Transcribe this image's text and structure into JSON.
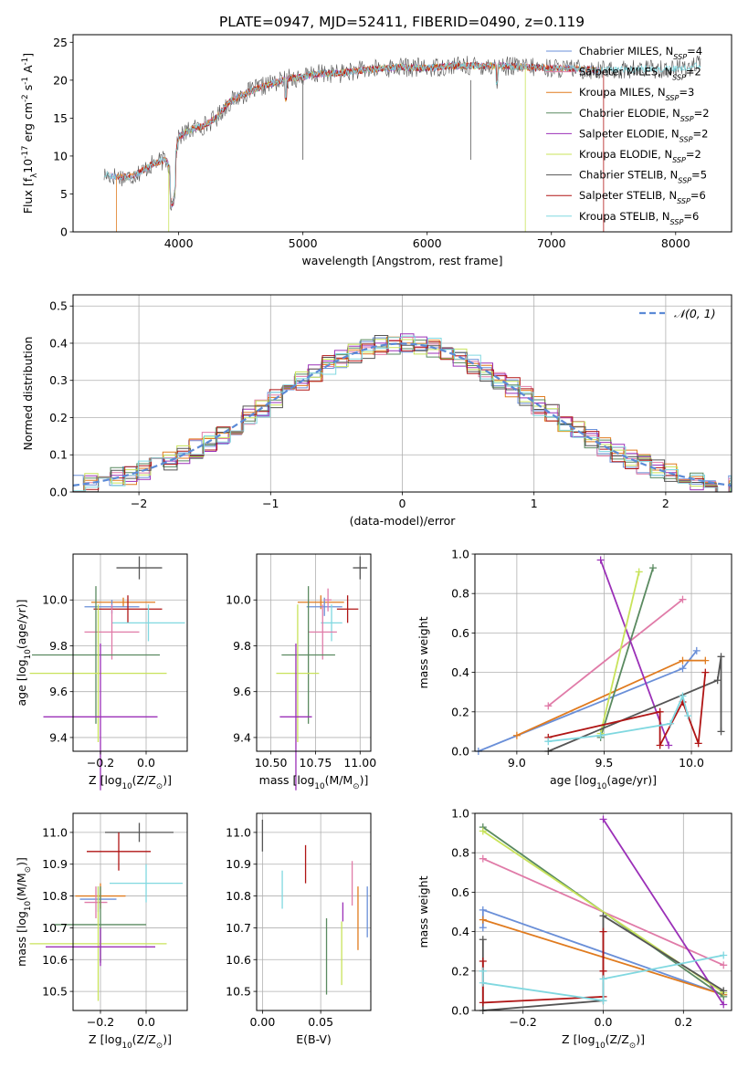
{
  "title": "PLATE=0947, MJD=52411, FIBERID=0490, z=0.119",
  "colors": {
    "Chabrier MILES": "#6a8fd8",
    "Salpeter MILES": "#e07ba8",
    "Kroupa MILES": "#e07b1f",
    "Chabrier ELODIE": "#5a8a60",
    "Salpeter ELODIE": "#9b30b8",
    "Kroupa ELODIE": "#c8e35a",
    "Chabrier STELIB": "#555555",
    "Salpeter STELIB": "#b01515",
    "Kroupa STELIB": "#80d8e0",
    "gauss": "#5b8ad6"
  },
  "chart_data": [
    {
      "id": "spectrum",
      "type": "line",
      "xlabel": "wavelength [Angstrom, rest frame]",
      "ylabel": "Flux [f$_\\lambda$10$^{-17}$ erg cm$^{-2}$ s$^{-1}$ A$^{-1}$]",
      "xlim": [
        3150,
        8450
      ],
      "ylim": [
        0,
        26
      ],
      "xticks": [
        4000,
        5000,
        6000,
        7000,
        8000
      ],
      "yticks": [
        0,
        5,
        10,
        15,
        20,
        25
      ],
      "grid": false,
      "legend_position": "top-right",
      "legend": [
        {
          "name": "Chabrier MILES",
          "nssp": "4"
        },
        {
          "name": "Salpeter MILES",
          "nssp": "2"
        },
        {
          "name": "Kroupa MILES",
          "nssp": "3"
        },
        {
          "name": "Chabrier ELODIE",
          "nssp": "2"
        },
        {
          "name": "Salpeter ELODIE",
          "nssp": "2"
        },
        {
          "name": "Kroupa ELODIE",
          "nssp": "2"
        },
        {
          "name": "Chabrier STELIB",
          "nssp": "5"
        },
        {
          "name": "Salpeter STELIB",
          "nssp": "6"
        },
        {
          "name": "Kroupa STELIB",
          "nssp": "6"
        }
      ],
      "continuum": [
        [
          3400,
          7.5
        ],
        [
          3600,
          7.2
        ],
        [
          3700,
          8.0
        ],
        [
          3800,
          9.0
        ],
        [
          3900,
          9.5
        ],
        [
          3950,
          7.5
        ],
        [
          4000,
          12.5
        ],
        [
          4100,
          13.5
        ],
        [
          4200,
          14.0
        ],
        [
          4300,
          15.0
        ],
        [
          4400,
          17.0
        ],
        [
          4500,
          18.0
        ],
        [
          4600,
          18.7
        ],
        [
          4700,
          19.3
        ],
        [
          4800,
          19.8
        ],
        [
          4900,
          20.3
        ],
        [
          5000,
          20.4
        ],
        [
          5100,
          20.8
        ],
        [
          5200,
          20.9
        ],
        [
          5300,
          20.9
        ],
        [
          5400,
          21.2
        ],
        [
          5600,
          21.5
        ],
        [
          5800,
          21.7
        ],
        [
          6000,
          21.6
        ],
        [
          6200,
          21.9
        ],
        [
          6400,
          21.9
        ],
        [
          6600,
          21.9
        ],
        [
          6800,
          21.7
        ],
        [
          7000,
          21.6
        ],
        [
          7200,
          21.5
        ],
        [
          7400,
          21.3
        ],
        [
          7600,
          21.4
        ],
        [
          7800,
          21.5
        ],
        [
          8000,
          21.5
        ],
        [
          8200,
          22.0
        ]
      ]
    },
    {
      "id": "residuals",
      "type": "histogram",
      "xlabel": "(data-model)/error",
      "ylabel": "Normed distribution",
      "xlim": [
        -2.5,
        2.5
      ],
      "ylim": [
        0,
        0.53
      ],
      "xticks": [
        -2,
        -1,
        0,
        1,
        2
      ],
      "yticks": [
        0.0,
        0.1,
        0.2,
        0.3,
        0.4,
        0.5
      ],
      "grid": true,
      "legend_position": "top-right",
      "legend_label": "$\\mathcal{N}(0, 1)$"
    },
    {
      "id": "age-vs-Z",
      "type": "errorbar",
      "xlabel": "Z [log$_{10}$(Z/Z$_\\odot$)]",
      "ylabel": "age  [log$_{10}$(age/yr)]",
      "xlim": [
        -0.32,
        0.18
      ],
      "ylim": [
        9.34,
        10.2
      ],
      "xticks": [
        -0.2,
        0.0
      ],
      "yticks": [
        9.4,
        9.6,
        9.8,
        10.0
      ],
      "grid": true,
      "points": [
        {
          "series": "Chabrier STELIB",
          "x": -0.03,
          "y": 10.14,
          "xerr": 0.1,
          "yerr": 0.05
        },
        {
          "series": "Kroupa MILES",
          "x": -0.1,
          "y": 9.99,
          "xerr": 0.14,
          "yerr": 0.02
        },
        {
          "series": "Chabrier MILES",
          "x": -0.15,
          "y": 9.97,
          "xerr": 0.12,
          "yerr": 0.03
        },
        {
          "series": "Salpeter STELIB",
          "x": -0.08,
          "y": 9.96,
          "xerr": 0.15,
          "yerr": 0.06
        },
        {
          "series": "Kroupa STELIB",
          "x": 0.01,
          "y": 9.9,
          "xerr": 0.16,
          "yerr": 0.08
        },
        {
          "series": "Salpeter MILES",
          "x": -0.15,
          "y": 9.86,
          "xerr": 0.12,
          "yerr": 0.12
        },
        {
          "series": "Chabrier ELODIE",
          "x": -0.22,
          "y": 9.76,
          "xerr": 0.28,
          "yerr": 0.3
        },
        {
          "series": "Kroupa ELODIE",
          "x": -0.21,
          "y": 9.68,
          "xerr": 0.3,
          "yerr": 0.3
        },
        {
          "series": "Salpeter ELODIE",
          "x": -0.2,
          "y": 9.49,
          "xerr": 0.25,
          "yerr": 0.32
        }
      ]
    },
    {
      "id": "age-vs-mass",
      "type": "errorbar",
      "xlabel": "mass [log$_{10}$(M/M$_\\odot$)]",
      "ylabel": "",
      "xlim": [
        10.42,
        11.06
      ],
      "ylim": [
        9.34,
        10.2
      ],
      "xticks": [
        10.5,
        10.75,
        11.0
      ],
      "yticks": [
        9.4,
        9.6,
        9.8,
        10.0
      ],
      "grid": true,
      "points": [
        {
          "series": "Chabrier STELIB",
          "x": 11.0,
          "y": 10.14,
          "xerr": 0.04,
          "yerr": 0.05
        },
        {
          "series": "Kroupa MILES",
          "x": 10.78,
          "y": 9.99,
          "xerr": 0.13,
          "yerr": 0.03
        },
        {
          "series": "Chabrier MILES",
          "x": 10.8,
          "y": 9.97,
          "xerr": 0.1,
          "yerr": 0.04
        },
        {
          "series": "Salpeter MILES",
          "x": 10.82,
          "y": 10.0,
          "xerr": 0.02,
          "yerr": 0.05
        },
        {
          "series": "Salpeter STELIB",
          "x": 10.93,
          "y": 9.96,
          "xerr": 0.06,
          "yerr": 0.06
        },
        {
          "series": "Kroupa STELIB",
          "x": 10.84,
          "y": 9.9,
          "xerr": 0.06,
          "yerr": 0.08
        },
        {
          "series": "Salpeter MILES",
          "x": 10.79,
          "y": 9.86,
          "xerr": 0.08,
          "yerr": 0.12
        },
        {
          "series": "Chabrier ELODIE",
          "x": 10.71,
          "y": 9.76,
          "xerr": 0.15,
          "yerr": 0.3
        },
        {
          "series": "Kroupa ELODIE",
          "x": 10.65,
          "y": 9.68,
          "xerr": 0.12,
          "yerr": 0.3
        },
        {
          "series": "Salpeter ELODIE",
          "x": 10.64,
          "y": 9.49,
          "xerr": 0.09,
          "yerr": 0.32
        }
      ]
    },
    {
      "id": "weight-vs-age",
      "type": "line",
      "xlabel": "age  [log$_{10}$(age/yr)]",
      "ylabel": "mass weight",
      "xlim": [
        8.76,
        10.23
      ],
      "ylim": [
        0,
        1.0
      ],
      "xticks": [
        9.0,
        9.5,
        10.0
      ],
      "yticks": [
        0.0,
        0.2,
        0.4,
        0.6,
        0.8,
        1.0
      ],
      "grid": true,
      "series": [
        {
          "name": "Chabrier MILES",
          "points": [
            [
              8.78,
              0.0
            ],
            [
              9.95,
              0.42
            ],
            [
              10.03,
              0.51
            ]
          ]
        },
        {
          "name": "Salpeter MILES",
          "points": [
            [
              9.18,
              0.23
            ],
            [
              9.95,
              0.77
            ]
          ]
        },
        {
          "name": "Kroupa MILES",
          "points": [
            [
              9.0,
              0.08
            ],
            [
              9.95,
              0.46
            ],
            [
              10.08,
              0.46
            ]
          ]
        },
        {
          "name": "Chabrier ELODIE",
          "points": [
            [
              9.48,
              0.07
            ],
            [
              9.78,
              0.93
            ]
          ]
        },
        {
          "name": "Salpeter ELODIE",
          "points": [
            [
              9.48,
              0.97
            ],
            [
              9.87,
              0.03
            ]
          ]
        },
        {
          "name": "Kroupa ELODIE",
          "points": [
            [
              9.48,
              0.09
            ],
            [
              9.7,
              0.91
            ]
          ]
        },
        {
          "name": "Chabrier STELIB",
          "points": [
            [
              9.18,
              0.0
            ],
            [
              10.15,
              0.36
            ],
            [
              10.17,
              0.48
            ],
            [
              10.17,
              0.1
            ]
          ]
        },
        {
          "name": "Salpeter STELIB",
          "points": [
            [
              9.18,
              0.07
            ],
            [
              9.82,
              0.2
            ],
            [
              9.82,
              0.03
            ],
            [
              9.95,
              0.25
            ],
            [
              10.04,
              0.04
            ],
            [
              10.08,
              0.4
            ]
          ]
        },
        {
          "name": "Kroupa STELIB",
          "points": [
            [
              9.18,
              0.05
            ],
            [
              9.48,
              0.08
            ],
            [
              9.88,
              0.14
            ],
            [
              9.95,
              0.28
            ],
            [
              9.98,
              0.18
            ]
          ]
        }
      ]
    },
    {
      "id": "mass-vs-Z",
      "type": "errorbar",
      "xlabel": "Z [log$_{10}$(Z/Z$_\\odot$)]",
      "ylabel": "mass [log$_{10}$(M/M$_\\odot$)]",
      "xlim": [
        -0.32,
        0.18
      ],
      "ylim": [
        10.44,
        11.06
      ],
      "xticks": [
        -0.2,
        0.0
      ],
      "yticks": [
        10.5,
        10.6,
        10.7,
        10.8,
        10.9,
        11.0
      ],
      "grid": true,
      "points": [
        {
          "series": "Chabrier STELIB",
          "x": -0.03,
          "y": 11.0,
          "xerr": 0.15,
          "yerr": 0.03
        },
        {
          "series": "Salpeter STELIB",
          "x": -0.12,
          "y": 10.94,
          "xerr": 0.14,
          "yerr": 0.06
        },
        {
          "series": "Kroupa STELIB",
          "x": 0.0,
          "y": 10.84,
          "xerr": 0.16,
          "yerr": 0.06
        },
        {
          "series": "Kroupa MILES",
          "x": -0.2,
          "y": 10.8,
          "xerr": 0.11,
          "yerr": 0.04
        },
        {
          "series": "Chabrier MILES",
          "x": -0.21,
          "y": 10.79,
          "xerr": 0.08,
          "yerr": 0.04
        },
        {
          "series": "Salpeter MILES",
          "x": -0.22,
          "y": 10.78,
          "xerr": 0.05,
          "yerr": 0.05
        },
        {
          "series": "Chabrier ELODIE",
          "x": -0.2,
          "y": 10.71,
          "xerr": 0.2,
          "yerr": 0.12
        },
        {
          "series": "Kroupa ELODIE",
          "x": -0.21,
          "y": 10.65,
          "xerr": 0.3,
          "yerr": 0.18
        },
        {
          "series": "Salpeter ELODIE",
          "x": -0.2,
          "y": 10.64,
          "xerr": 0.24,
          "yerr": 0.06
        }
      ]
    },
    {
      "id": "mass-vs-ebv",
      "type": "errorbar",
      "xlabel": "E(B-V)",
      "ylabel": "",
      "xlim": [
        -0.005,
        0.093
      ],
      "ylim": [
        10.44,
        11.06
      ],
      "xticks": [
        0.0,
        0.05
      ],
      "yticks": [
        10.5,
        10.6,
        10.7,
        10.8,
        10.9,
        11.0
      ],
      "grid": true,
      "points": [
        {
          "series": "Chabrier STELIB",
          "x": 0.0,
          "y": 10.99,
          "xerr": 0.0,
          "yerr": 0.05
        },
        {
          "series": "Salpeter STELIB",
          "x": 0.037,
          "y": 10.9,
          "xerr": 0.0,
          "yerr": 0.06
        },
        {
          "series": "Kroupa STELIB",
          "x": 0.017,
          "y": 10.82,
          "xerr": 0.0,
          "yerr": 0.06
        },
        {
          "series": "Salpeter MILES",
          "x": 0.077,
          "y": 10.84,
          "xerr": 0.0,
          "yerr": 0.07
        },
        {
          "series": "Kroupa MILES",
          "x": 0.082,
          "y": 10.73,
          "xerr": 0.0,
          "yerr": 0.1
        },
        {
          "series": "Chabrier MILES",
          "x": 0.09,
          "y": 10.75,
          "xerr": 0.0,
          "yerr": 0.08
        },
        {
          "series": "Salpeter ELODIE",
          "x": 0.069,
          "y": 10.75,
          "xerr": 0.0,
          "yerr": 0.03
        },
        {
          "series": "Chabrier ELODIE",
          "x": 0.055,
          "y": 10.61,
          "xerr": 0.0,
          "yerr": 0.12
        },
        {
          "series": "Kroupa ELODIE",
          "x": 0.068,
          "y": 10.62,
          "xerr": 0.0,
          "yerr": 0.1
        }
      ]
    },
    {
      "id": "weight-vs-Z",
      "type": "line",
      "xlabel": "Z [log$_{10}$(Z/Z$_\\odot$)]",
      "ylabel": "mass weight",
      "xlim": [
        -0.32,
        0.32
      ],
      "ylim": [
        0,
        1.0
      ],
      "xticks": [
        -0.2,
        0.0,
        0.2
      ],
      "yticks": [
        0.0,
        0.2,
        0.4,
        0.6,
        0.8,
        1.0
      ],
      "grid": true,
      "series": [
        {
          "name": "Chabrier MILES",
          "points": [
            [
              -0.3,
              0.42
            ],
            [
              -0.3,
              0.51
            ],
            [
              0.3,
              0.08
            ]
          ]
        },
        {
          "name": "Salpeter MILES",
          "points": [
            [
              -0.3,
              0.77
            ],
            [
              0.3,
              0.23
            ]
          ]
        },
        {
          "name": "Kroupa MILES",
          "points": [
            [
              -0.3,
              0.46
            ],
            [
              0.3,
              0.08
            ]
          ]
        },
        {
          "name": "Chabrier ELODIE",
          "points": [
            [
              -0.3,
              0.93
            ],
            [
              0.3,
              0.07
            ]
          ]
        },
        {
          "name": "Salpeter ELODIE",
          "points": [
            [
              0.0,
              0.97
            ],
            [
              0.3,
              0.03
            ]
          ]
        },
        {
          "name": "Kroupa ELODIE",
          "points": [
            [
              -0.3,
              0.91
            ],
            [
              0.3,
              0.09
            ]
          ]
        },
        {
          "name": "Chabrier STELIB",
          "points": [
            [
              -0.3,
              0.36
            ],
            [
              -0.3,
              0.0
            ],
            [
              0.0,
              0.05
            ],
            [
              0.0,
              0.48
            ],
            [
              0.3,
              0.1
            ]
          ]
        },
        {
          "name": "Salpeter STELIB",
          "points": [
            [
              -0.3,
              0.25
            ],
            [
              -0.3,
              0.04
            ],
            [
              0.0,
              0.07
            ],
            [
              0.0,
              0.4
            ],
            [
              0.0,
              0.2
            ]
          ]
        },
        {
          "name": "Kroupa STELIB",
          "points": [
            [
              -0.3,
              0.2
            ],
            [
              -0.3,
              0.14
            ],
            [
              0.0,
              0.05
            ],
            [
              0.0,
              0.16
            ],
            [
              0.3,
              0.28
            ]
          ]
        }
      ]
    }
  ]
}
